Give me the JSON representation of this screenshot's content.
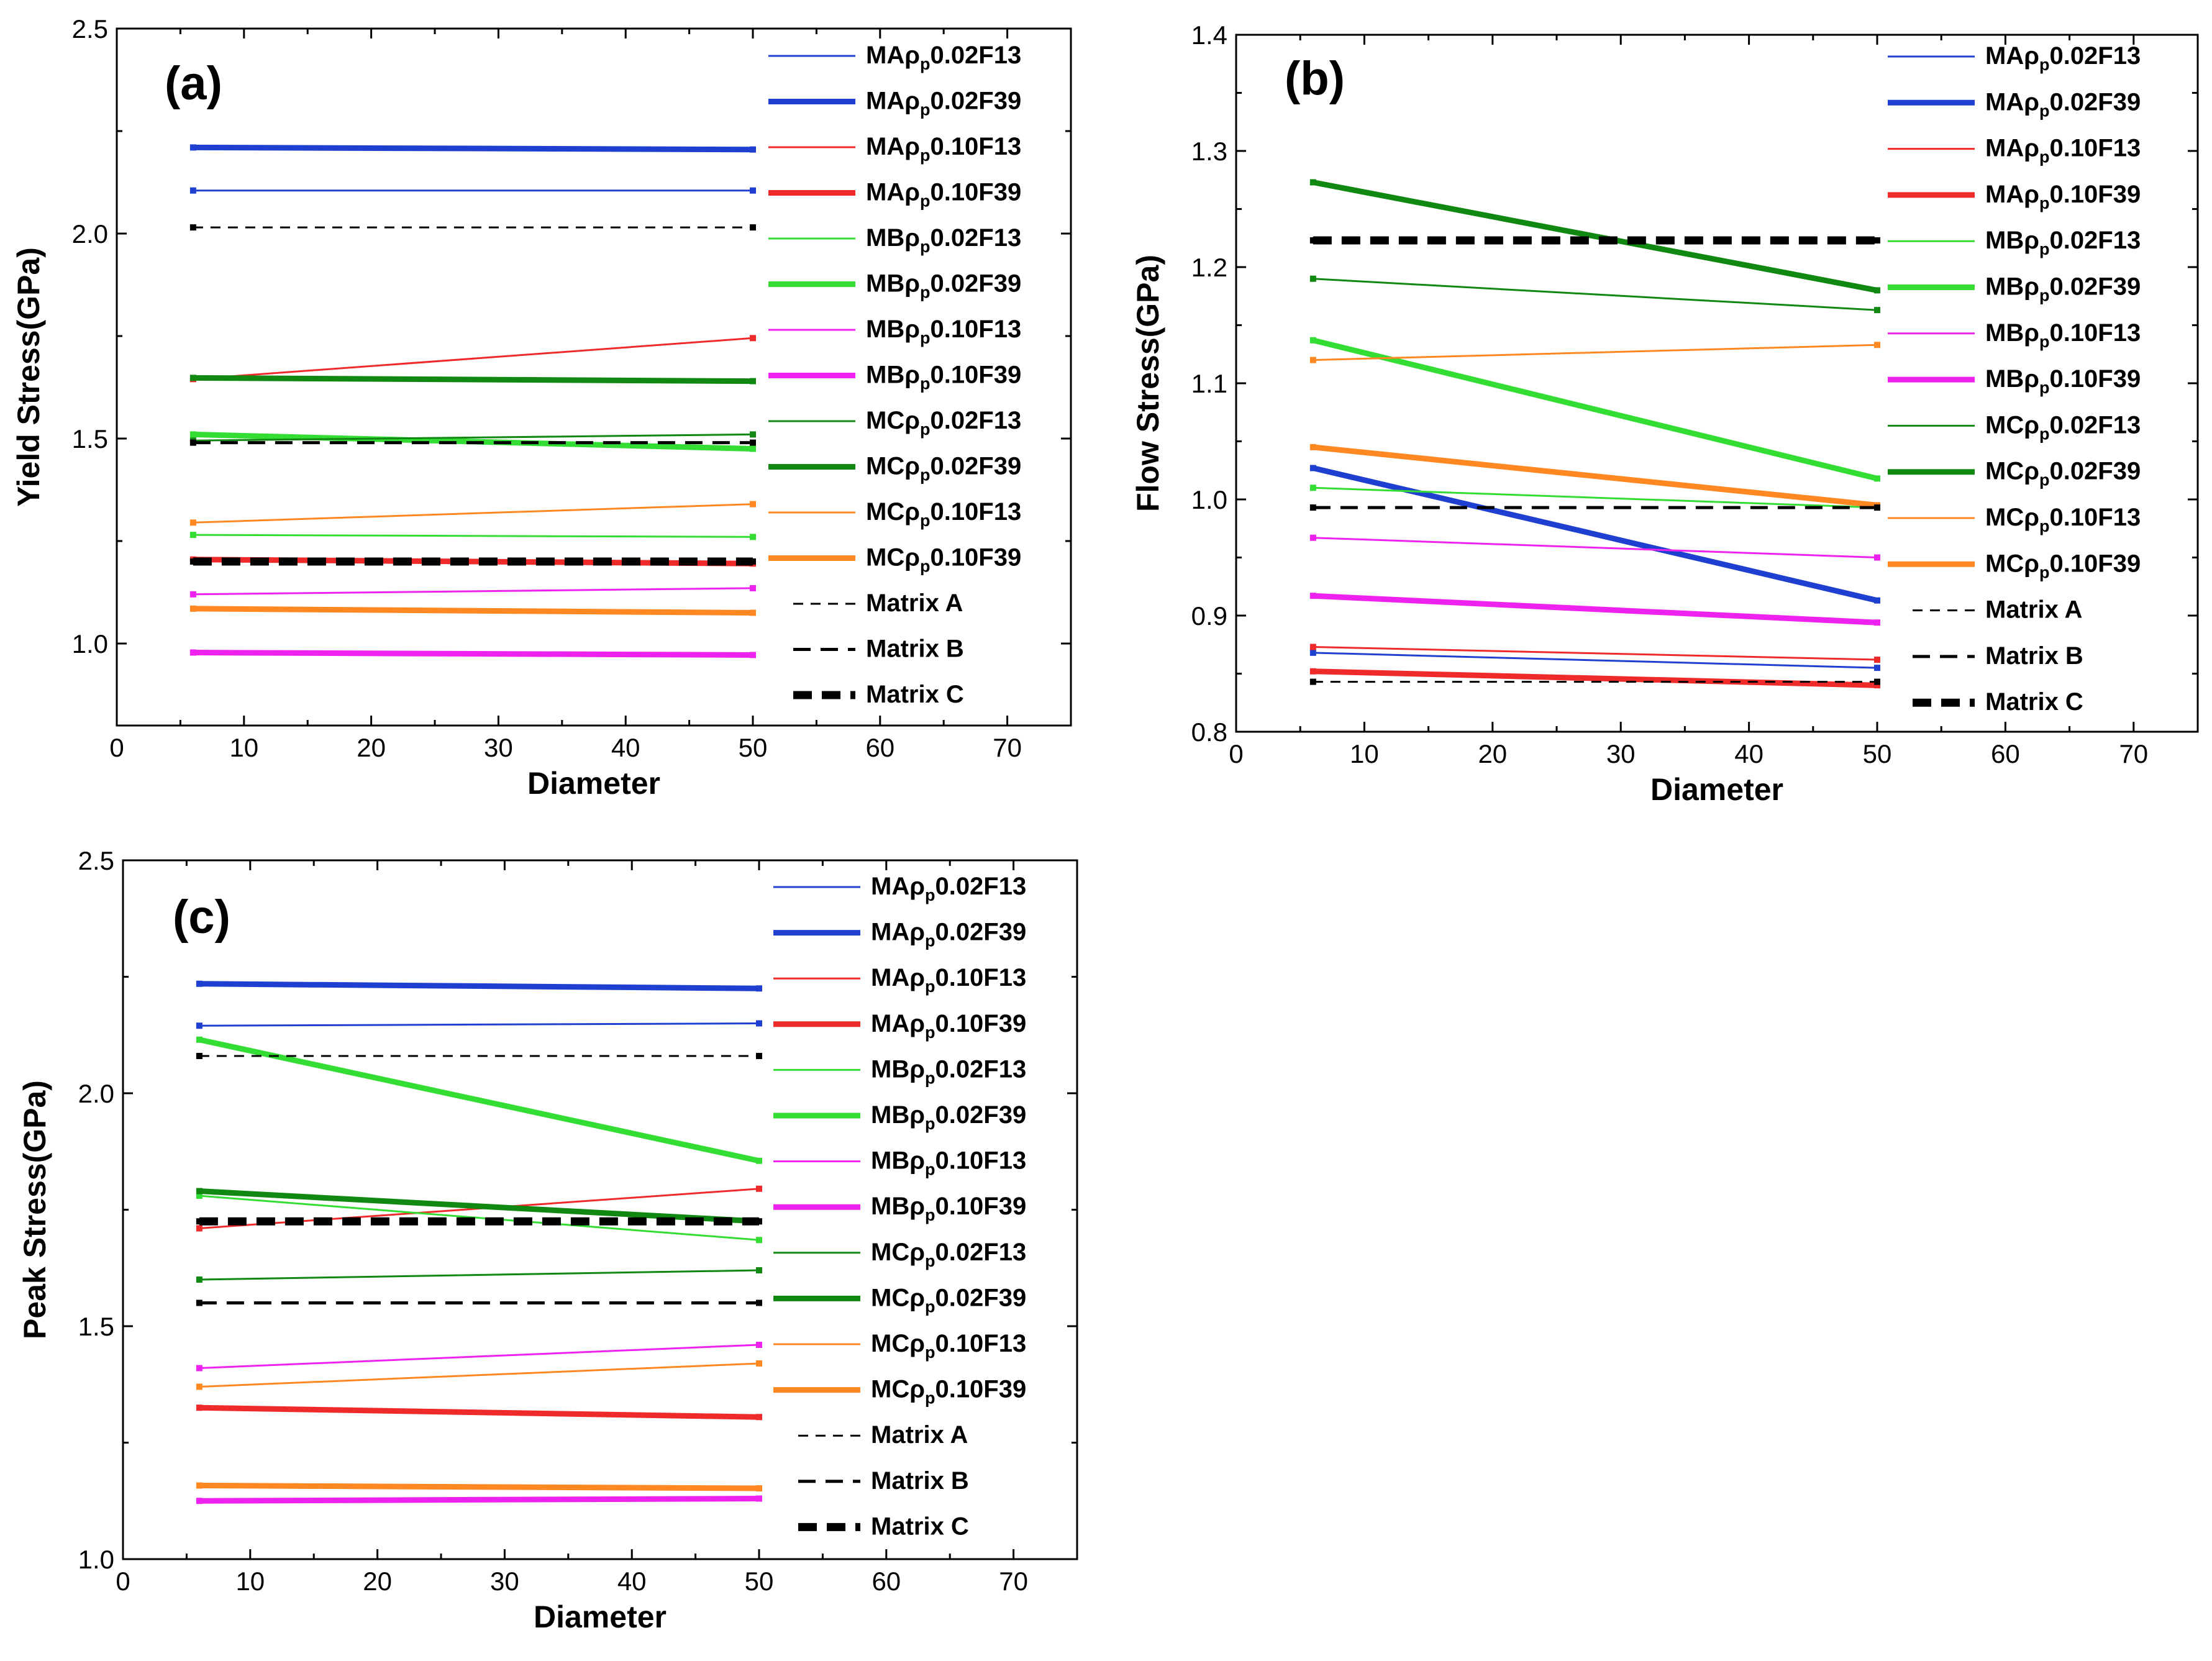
{
  "series_styles": {
    "MAρp0.02F13": {
      "color": "#1f3fd0",
      "weight": "thin"
    },
    "MAρp0.02F39": {
      "color": "#1f3fd0",
      "weight": "thick"
    },
    "MAρp0.10F13": {
      "color": "#ee2a2a",
      "weight": "thin"
    },
    "MAρp0.10F39": {
      "color": "#ee2a2a",
      "weight": "thick"
    },
    "MBρp0.02F13": {
      "color": "#33dd33",
      "weight": "thin"
    },
    "MBρp0.02F39": {
      "color": "#33dd33",
      "weight": "thick"
    },
    "MBρp0.10F13": {
      "color": "#ee22ee",
      "weight": "thin"
    },
    "MBρp0.10F39": {
      "color": "#ee22ee",
      "weight": "thick"
    },
    "MCρp0.02F13": {
      "color": "#118811",
      "weight": "thin"
    },
    "MCρp0.02F39": {
      "color": "#118811",
      "weight": "thick"
    },
    "MCρp0.10F13": {
      "color": "#ff8822",
      "weight": "thin"
    },
    "MCρp0.10F39": {
      "color": "#ff8822",
      "weight": "thick"
    },
    "Matrix A": {
      "color": "#000000",
      "weight": "dashA"
    },
    "Matrix B": {
      "color": "#000000",
      "weight": "dashB"
    },
    "Matrix C": {
      "color": "#000000",
      "weight": "dashC"
    }
  },
  "chart_data": [
    {
      "type": "line",
      "panel_label": "(a)",
      "xlabel": "Diameter",
      "ylabel": "Yield Stress(GPa)",
      "xlim": [
        0,
        75
      ],
      "ylim": [
        0.8,
        2.5
      ],
      "x_ticks": [
        "0",
        "10",
        "20",
        "30",
        "40",
        "50",
        "60",
        "70"
      ],
      "y_ticks": [
        "1.0",
        "1.5",
        "2.0",
        "2.5"
      ],
      "legend": [
        "MAρp0.02F13",
        "MAρp0.02F39",
        "MAρp0.10F13",
        "MAρp0.10F39",
        "MBρp0.02F13",
        "MBρp0.02F39",
        "MBρp0.10F13",
        "MBρp0.10F39",
        "MCρp0.02F13",
        "MCρp0.02F39",
        "MCρp0.10F13",
        "MCρp0.10F39",
        "Matrix A",
        "Matrix B",
        "Matrix C"
      ],
      "series": [
        {
          "name": "MAρp0.02F13",
          "x": [
            6,
            50
          ],
          "y": [
            2.105,
            2.105
          ]
        },
        {
          "name": "MAρp0.02F39",
          "x": [
            6,
            50
          ],
          "y": [
            2.21,
            2.205
          ]
        },
        {
          "name": "MAρp0.10F13",
          "x": [
            6,
            50
          ],
          "y": [
            1.645,
            1.745
          ]
        },
        {
          "name": "MAρp0.10F39",
          "x": [
            6,
            50
          ],
          "y": [
            1.205,
            1.195
          ]
        },
        {
          "name": "MBρp0.02F13",
          "x": [
            6,
            50
          ],
          "y": [
            1.265,
            1.26
          ]
        },
        {
          "name": "MBρp0.02F39",
          "x": [
            6,
            50
          ],
          "y": [
            1.51,
            1.475
          ]
        },
        {
          "name": "MBρp0.10F13",
          "x": [
            6,
            50
          ],
          "y": [
            1.12,
            1.135
          ]
        },
        {
          "name": "MBρp0.10F39",
          "x": [
            6,
            50
          ],
          "y": [
            0.978,
            0.972
          ]
        },
        {
          "name": "MCρp0.02F13",
          "x": [
            6,
            50
          ],
          "y": [
            1.495,
            1.51
          ]
        },
        {
          "name": "MCρp0.02F39",
          "x": [
            6,
            50
          ],
          "y": [
            1.648,
            1.64
          ]
        },
        {
          "name": "MCρp0.10F13",
          "x": [
            6,
            50
          ],
          "y": [
            1.295,
            1.34
          ]
        },
        {
          "name": "MCρp0.10F39",
          "x": [
            6,
            50
          ],
          "y": [
            1.085,
            1.075
          ]
        },
        {
          "name": "Matrix A",
          "x": [
            6,
            50
          ],
          "y": [
            2.015,
            2.015
          ]
        },
        {
          "name": "Matrix B",
          "x": [
            6,
            50
          ],
          "y": [
            1.49,
            1.49
          ]
        },
        {
          "name": "Matrix C",
          "x": [
            6,
            50
          ],
          "y": [
            1.2,
            1.2
          ]
        }
      ]
    },
    {
      "type": "line",
      "panel_label": "(b)",
      "xlabel": "Diameter",
      "ylabel": "Flow Stress(GPa)",
      "xlim": [
        0,
        75
      ],
      "ylim": [
        0.8,
        1.4
      ],
      "x_ticks": [
        "0",
        "10",
        "20",
        "30",
        "40",
        "50",
        "60",
        "70"
      ],
      "y_ticks": [
        "0.8",
        "0.9",
        "1.0",
        "1.1",
        "1.2",
        "1.3",
        "1.4"
      ],
      "legend": [
        "MAρp0.02F13",
        "MAρp0.02F39",
        "MAρp0.10F13",
        "MAρp0.10F39",
        "MBρp0.02F13",
        "MBρp0.02F39",
        "MBρp0.10F13",
        "MBρp0.10F39",
        "MCρp0.02F13",
        "MCρp0.02F39",
        "MCρp0.10F13",
        "MCρp0.10F39",
        "Matrix A",
        "Matrix B",
        "Matrix C"
      ],
      "series": [
        {
          "name": "MAρp0.02F13",
          "x": [
            6,
            50
          ],
          "y": [
            0.868,
            0.855
          ]
        },
        {
          "name": "MAρp0.02F39",
          "x": [
            6,
            50
          ],
          "y": [
            1.027,
            0.913
          ]
        },
        {
          "name": "MAρp0.10F13",
          "x": [
            6,
            50
          ],
          "y": [
            0.873,
            0.862
          ]
        },
        {
          "name": "MAρp0.10F39",
          "x": [
            6,
            50
          ],
          "y": [
            0.852,
            0.84
          ]
        },
        {
          "name": "MBρp0.02F13",
          "x": [
            6,
            50
          ],
          "y": [
            1.01,
            0.993
          ]
        },
        {
          "name": "MBρp0.02F39",
          "x": [
            6,
            50
          ],
          "y": [
            1.137,
            1.018
          ]
        },
        {
          "name": "MBρp0.10F13",
          "x": [
            6,
            50
          ],
          "y": [
            0.967,
            0.95
          ]
        },
        {
          "name": "MBρp0.10F39",
          "x": [
            6,
            50
          ],
          "y": [
            0.917,
            0.894
          ]
        },
        {
          "name": "MCρp0.02F13",
          "x": [
            6,
            50
          ],
          "y": [
            1.19,
            1.163
          ]
        },
        {
          "name": "MCρp0.02F39",
          "x": [
            6,
            50
          ],
          "y": [
            1.273,
            1.18
          ]
        },
        {
          "name": "MCρp0.10F13",
          "x": [
            6,
            50
          ],
          "y": [
            1.12,
            1.133
          ]
        },
        {
          "name": "MCρp0.10F39",
          "x": [
            6,
            50
          ],
          "y": [
            1.045,
            0.995
          ]
        },
        {
          "name": "Matrix A",
          "x": [
            6,
            50
          ],
          "y": [
            0.843,
            0.843
          ]
        },
        {
          "name": "Matrix B",
          "x": [
            6,
            50
          ],
          "y": [
            0.993,
            0.993
          ]
        },
        {
          "name": "Matrix C",
          "x": [
            6,
            50
          ],
          "y": [
            1.223,
            1.223
          ]
        }
      ]
    },
    {
      "type": "line",
      "panel_label": "(c)",
      "xlabel": "Diameter",
      "ylabel": "Peak Stress(GPa)",
      "xlim": [
        0,
        75
      ],
      "ylim": [
        1.0,
        2.5
      ],
      "x_ticks": [
        "0",
        "10",
        "20",
        "30",
        "40",
        "50",
        "60",
        "70"
      ],
      "y_ticks": [
        "1.0",
        "1.5",
        "2.0",
        "2.5"
      ],
      "legend": [
        "MAρp0.02F13",
        "MAρp0.02F39",
        "MAρp0.10F13",
        "MAρp0.10F39",
        "MBρp0.02F13",
        "MBρp0.02F39",
        "MBρp0.10F13",
        "MBρp0.10F39",
        "MCρp0.02F13",
        "MCρp0.02F39",
        "MCρp0.10F13",
        "MCρp0.10F39",
        "Matrix A",
        "Matrix B",
        "Matrix C"
      ],
      "series": [
        {
          "name": "MAρp0.02F13",
          "x": [
            6,
            50
          ],
          "y": [
            2.145,
            2.15
          ]
        },
        {
          "name": "MAρp0.02F39",
          "x": [
            6,
            50
          ],
          "y": [
            2.235,
            2.225
          ]
        },
        {
          "name": "MAρp0.10F13",
          "x": [
            6,
            50
          ],
          "y": [
            1.71,
            1.795
          ]
        },
        {
          "name": "MAρp0.10F39",
          "x": [
            6,
            50
          ],
          "y": [
            1.325,
            1.305
          ]
        },
        {
          "name": "MBρp0.02F13",
          "x": [
            6,
            50
          ],
          "y": [
            1.78,
            1.685
          ]
        },
        {
          "name": "MBρp0.02F39",
          "x": [
            6,
            50
          ],
          "y": [
            2.115,
            1.855
          ]
        },
        {
          "name": "MBρp0.10F13",
          "x": [
            6,
            50
          ],
          "y": [
            1.41,
            1.46
          ]
        },
        {
          "name": "MBρp0.10F39",
          "x": [
            6,
            50
          ],
          "y": [
            1.125,
            1.13
          ]
        },
        {
          "name": "MCρp0.02F13",
          "x": [
            6,
            50
          ],
          "y": [
            1.6,
            1.62
          ]
        },
        {
          "name": "MCρp0.02F39",
          "x": [
            6,
            50
          ],
          "y": [
            1.79,
            1.725
          ]
        },
        {
          "name": "MCρp0.10F13",
          "x": [
            6,
            50
          ],
          "y": [
            1.37,
            1.42
          ]
        },
        {
          "name": "MCρp0.10F39",
          "x": [
            6,
            50
          ],
          "y": [
            1.158,
            1.152
          ]
        },
        {
          "name": "Matrix A",
          "x": [
            6,
            50
          ],
          "y": [
            2.08,
            2.08
          ]
        },
        {
          "name": "Matrix B",
          "x": [
            6,
            50
          ],
          "y": [
            1.55,
            1.55
          ]
        },
        {
          "name": "Matrix C",
          "x": [
            6,
            50
          ],
          "y": [
            1.725,
            1.725
          ]
        }
      ]
    }
  ]
}
